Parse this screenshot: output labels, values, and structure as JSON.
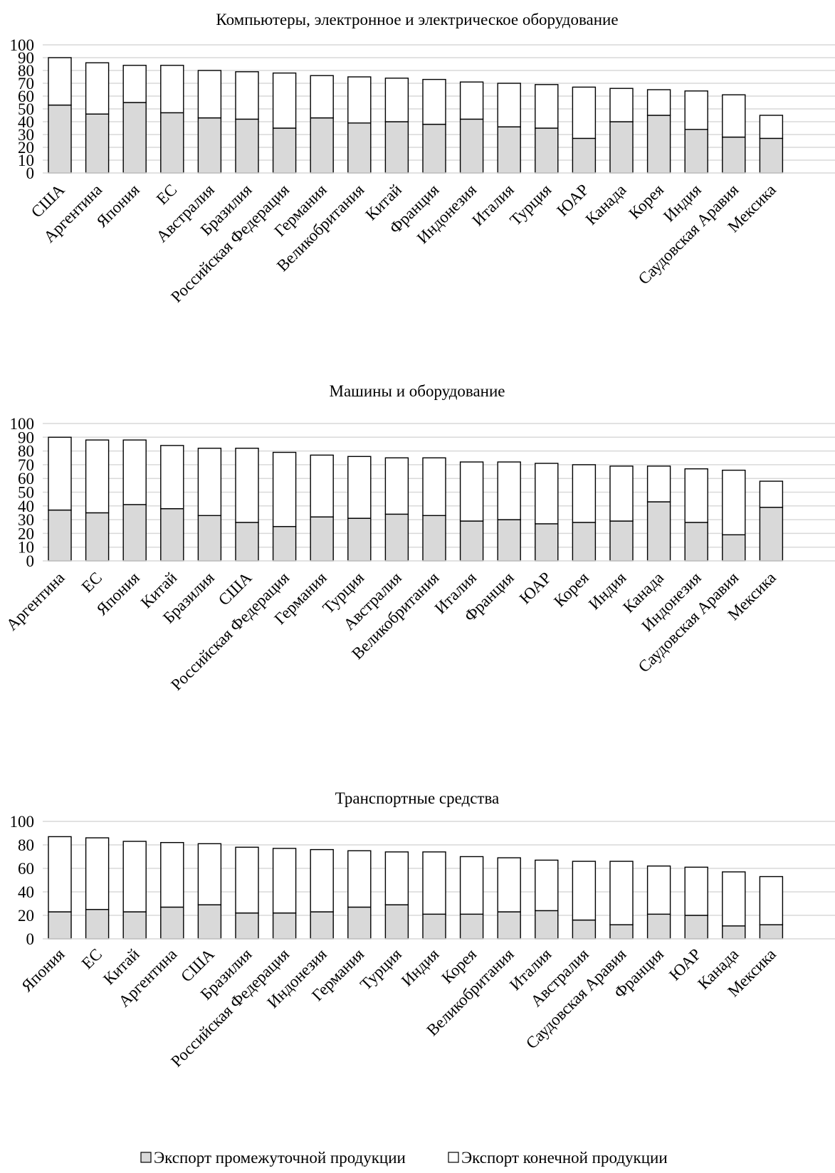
{
  "colors": {
    "intermediate": "#d9d9d9",
    "final": "#ffffff",
    "stroke": "#000000",
    "grid": "#d9d9d9"
  },
  "legend": {
    "items": [
      {
        "name": "Экспорт промежуточной продукции",
        "color": "#d9d9d9"
      },
      {
        "name": "Экспорт конечной продукции",
        "color": "#ffffff"
      }
    ],
    "placement": "bottom"
  },
  "chart_data": [
    {
      "type": "bar",
      "stacked": true,
      "title": "Компьютеры, электронное и электрическое оборудование",
      "xlabel": "",
      "ylabel": "",
      "ylim": [
        0,
        100
      ],
      "yticks": [
        0,
        10,
        20,
        30,
        40,
        50,
        60,
        70,
        80,
        90,
        100
      ],
      "grid": true,
      "categories": [
        "США",
        "Аргентина",
        "Япония",
        "ЕС",
        "Австралия",
        "Бразилия",
        "Российская Федерация",
        "Германия",
        "Великобритания",
        "Китай",
        "Франция",
        "Индонезия",
        "Италия",
        "Турция",
        "ЮАР",
        "Канада",
        "Корея",
        "Индия",
        "Саудовская Аравия",
        "Мексика"
      ],
      "series": [
        {
          "name": "Экспорт промежуточной продукции",
          "values": [
            53,
            46,
            55,
            47,
            43,
            42,
            35,
            43,
            39,
            40,
            38,
            42,
            36,
            35,
            27,
            40,
            45,
            34,
            28,
            27
          ]
        },
        {
          "name": "Экспорт конечной продукции",
          "values": [
            37,
            40,
            29,
            37,
            37,
            37,
            43,
            33,
            36,
            34,
            35,
            29,
            34,
            34,
            40,
            26,
            20,
            30,
            33,
            18
          ]
        }
      ]
    },
    {
      "type": "bar",
      "stacked": true,
      "title": "Машины и оборудование",
      "xlabel": "",
      "ylabel": "",
      "ylim": [
        0,
        100
      ],
      "yticks": [
        0,
        10,
        20,
        30,
        40,
        50,
        60,
        70,
        80,
        90,
        100
      ],
      "grid": true,
      "categories": [
        "Аргентина",
        "ЕС",
        "Япония",
        "Китай",
        "Бразилия",
        "США",
        "Российская Федерация",
        "Германия",
        "Турция",
        "Австралия",
        "Великобритания",
        "Италия",
        "Франция",
        "ЮАР",
        "Корея",
        "Индия",
        "Канада",
        "Индонезия",
        "Саудовская Аравия",
        "Мексика"
      ],
      "series": [
        {
          "name": "Экспорт промежуточной продукции",
          "values": [
            37,
            35,
            41,
            38,
            33,
            28,
            25,
            32,
            31,
            34,
            33,
            29,
            30,
            27,
            28,
            29,
            43,
            28,
            19,
            39
          ]
        },
        {
          "name": "Экспорт конечной продукции",
          "values": [
            53,
            53,
            47,
            46,
            49,
            54,
            54,
            45,
            45,
            41,
            42,
            43,
            42,
            44,
            42,
            40,
            26,
            39,
            47,
            19
          ]
        }
      ]
    },
    {
      "type": "bar",
      "stacked": true,
      "title": "Транспортные средства",
      "xlabel": "",
      "ylabel": "",
      "ylim": [
        0,
        100
      ],
      "yticks": [
        0,
        20,
        40,
        60,
        80,
        100
      ],
      "grid": true,
      "categories": [
        "Япония",
        "ЕС",
        "Китай",
        "Аргентина",
        "США",
        "Бразилия",
        "Российская Федерация",
        "Индонезия",
        "Германия",
        "Турция",
        "Индия",
        "Корея",
        "Великобритания",
        "Италия",
        "Австралия",
        "Саудовская Аравия",
        "Франция",
        "ЮАР",
        "Канада",
        "Мексика"
      ],
      "series": [
        {
          "name": "Экспорт промежуточной продукции",
          "values": [
            23,
            25,
            23,
            27,
            29,
            22,
            22,
            23,
            27,
            29,
            21,
            21,
            23,
            24,
            16,
            12,
            21,
            20,
            11,
            12
          ]
        },
        {
          "name": "Экспорт конечной продукции",
          "values": [
            64,
            61,
            60,
            55,
            52,
            56,
            55,
            53,
            48,
            45,
            53,
            49,
            46,
            43,
            50,
            54,
            41,
            41,
            46,
            41
          ]
        }
      ]
    }
  ]
}
